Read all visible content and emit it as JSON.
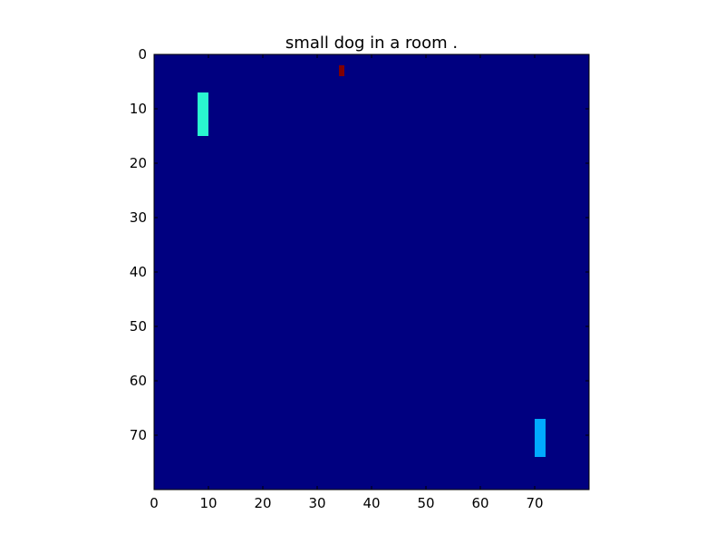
{
  "chart_data": {
    "type": "heatmap",
    "title": "small dog in a room .",
    "xlabel": "",
    "ylabel": "",
    "grid_size": [
      80,
      80
    ],
    "xlim": [
      0,
      80
    ],
    "ylim": [
      80,
      0
    ],
    "x_ticks": [
      "0",
      "10",
      "20",
      "30",
      "40",
      "50",
      "60",
      "70"
    ],
    "y_ticks": [
      "0",
      "10",
      "20",
      "30",
      "40",
      "50",
      "60",
      "70"
    ],
    "grid": false,
    "colormap": "jet",
    "background_color": "#000080",
    "colors": {
      "low": "#000080",
      "cell_a": "#2af5d0",
      "cell_b": "#00aaff",
      "cell_c": "#800000"
    },
    "cells": [
      {
        "x": 8,
        "y": 7,
        "w": 2,
        "h": 8,
        "color_key": "cell_a",
        "value": 0.45
      },
      {
        "x": 70,
        "y": 67,
        "w": 2,
        "h": 7,
        "color_key": "cell_b",
        "value": 0.3
      },
      {
        "x": 34,
        "y": 2,
        "w": 1,
        "h": 2,
        "color_key": "cell_c",
        "value": 1.0
      }
    ]
  }
}
